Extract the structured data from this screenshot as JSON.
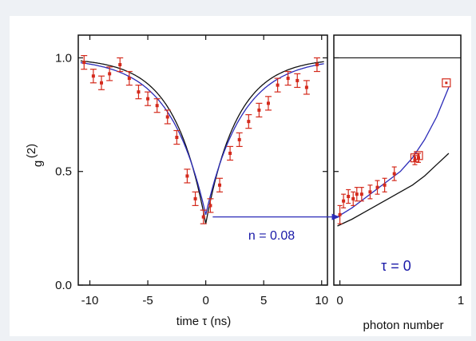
{
  "colors": {
    "page_background": "#eef1f5",
    "panel_background": "#ffffff",
    "data_marker": "#d42a1c",
    "blue_fit": "#2b2bb8",
    "black_curve": "#111111",
    "annotation": "#1a1aa8"
  },
  "chart_data": [
    {
      "type": "scatter",
      "xlabel": "time τ (ns)",
      "ylabel": "g(2)",
      "ylabel_main": "g",
      "ylabel_sup": "(2)",
      "xlim": [
        -11,
        10.5
      ],
      "ylim": [
        0,
        1.1
      ],
      "x_ticks": [
        -10,
        -5,
        0,
        5,
        10
      ],
      "x_tick_labels": [
        "-10",
        "-5",
        "0",
        "5",
        "10"
      ],
      "y_ticks": [
        0.0,
        0.5,
        1.0
      ],
      "y_tick_labels": [
        "0.0",
        "0.5",
        "1.0"
      ],
      "grid": false,
      "series": [
        {
          "style": "points-with-errorbars",
          "color": "#d42a1c",
          "x": [
            -10.5,
            -9.7,
            -9,
            -8.3,
            -7.4,
            -6.6,
            -5.8,
            -5,
            -4.2,
            -3.3,
            -2.5,
            -1.6,
            -0.9,
            -0.2,
            0.4,
            1.2,
            2.1,
            2.9,
            3.7,
            4.6,
            5.4,
            6.2,
            7.1,
            7.9,
            8.7,
            9.6
          ],
          "y": [
            0.98,
            0.92,
            0.89,
            0.93,
            0.97,
            0.91,
            0.85,
            0.82,
            0.79,
            0.74,
            0.65,
            0.48,
            0.38,
            0.3,
            0.35,
            0.44,
            0.58,
            0.64,
            0.72,
            0.77,
            0.8,
            0.88,
            0.91,
            0.9,
            0.87,
            0.97
          ],
          "err": [
            0.03,
            0.03,
            0.03,
            0.03,
            0.03,
            0.03,
            0.03,
            0.03,
            0.03,
            0.03,
            0.03,
            0.03,
            0.03,
            0.03,
            0.03,
            0.03,
            0.03,
            0.03,
            0.03,
            0.03,
            0.03,
            0.03,
            0.03,
            0.03,
            0.03,
            0.03
          ]
        },
        {
          "style": "fit-line",
          "color": "#2b2bb8",
          "min_value": 0.31,
          "max_value": 1.0
        },
        {
          "style": "model-line",
          "color": "#111111",
          "min_value": 0.27,
          "max_value": 1.0
        }
      ],
      "annotations": [
        {
          "text": "n = 0.08",
          "x": 4.3,
          "y": 0.21
        }
      ]
    },
    {
      "type": "scatter",
      "xlabel": "photon number",
      "xlim": [
        -0.05,
        1.0
      ],
      "ylim": [
        0,
        1.1
      ],
      "x_ticks": [
        0,
        1
      ],
      "x_tick_labels": [
        "0",
        "1"
      ],
      "grid": false,
      "series": [
        {
          "style": "points-with-errorbars",
          "color": "#d42a1c",
          "x": [
            0.0,
            0.03,
            0.07,
            0.11,
            0.14,
            0.18,
            0.25,
            0.31,
            0.37,
            0.45,
            0.62,
            0.65
          ],
          "y": [
            0.31,
            0.37,
            0.39,
            0.38,
            0.4,
            0.4,
            0.41,
            0.43,
            0.44,
            0.49,
            0.55,
            0.56
          ],
          "err": [
            0.04,
            0.03,
            0.03,
            0.03,
            0.03,
            0.03,
            0.03,
            0.03,
            0.03,
            0.03,
            0.02,
            0.02
          ]
        },
        {
          "style": "squares",
          "color": "#d42a1c",
          "x": [
            0.62,
            0.65,
            0.88
          ],
          "y": [
            0.56,
            0.57,
            0.89
          ]
        },
        {
          "style": "fit-line",
          "color": "#2b2bb8",
          "x": [
            -0.02,
            0.1,
            0.2,
            0.3,
            0.4,
            0.5,
            0.6,
            0.7,
            0.8,
            0.9
          ],
          "y": [
            0.3,
            0.34,
            0.38,
            0.42,
            0.46,
            0.5,
            0.56,
            0.64,
            0.74,
            0.87
          ]
        },
        {
          "style": "model-line",
          "color": "#111111",
          "x": [
            -0.02,
            0.1,
            0.2,
            0.3,
            0.4,
            0.5,
            0.6,
            0.7,
            0.8,
            0.9
          ],
          "y": [
            0.26,
            0.29,
            0.32,
            0.35,
            0.38,
            0.41,
            0.44,
            0.48,
            0.53,
            0.58
          ]
        },
        {
          "style": "reference-line",
          "color": "#111111",
          "y": 1.0
        }
      ],
      "annotations": [
        {
          "text": "τ = 0",
          "x": 0.28,
          "y": 0.1
        }
      ]
    }
  ]
}
